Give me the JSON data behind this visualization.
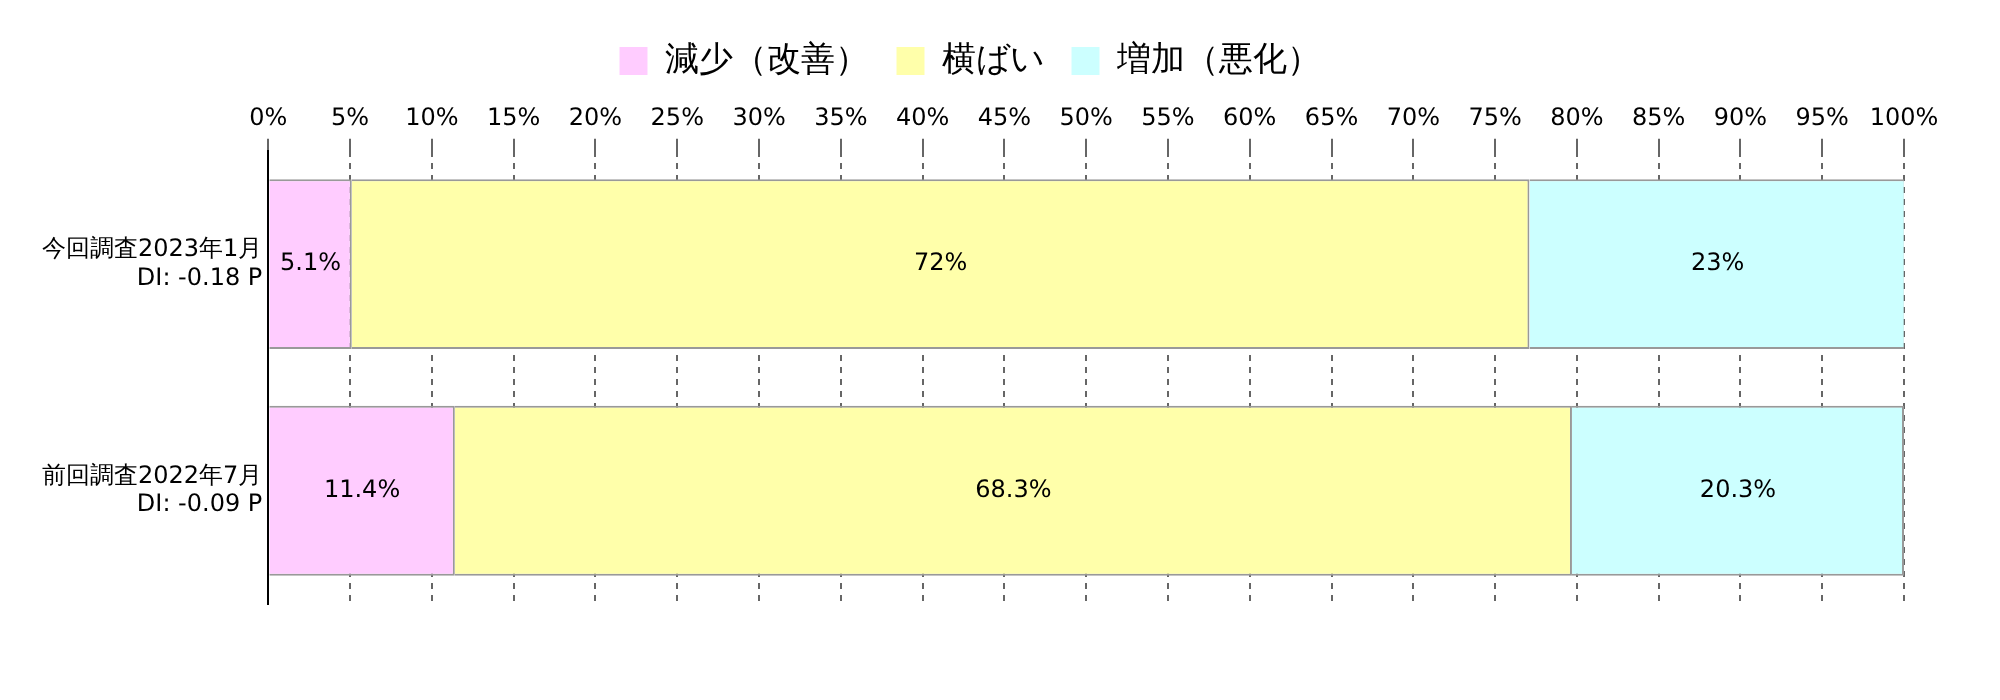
{
  "chart_data": {
    "type": "bar",
    "orientation": "horizontal",
    "stacked": true,
    "categories": [
      "今回調査2023年1月\nDI: -0.18 P",
      "前回調査2022年7月\nDI: -0.09 P"
    ],
    "series": [
      {
        "name": "減少（改善）",
        "color": "#ffccff",
        "values": [
          5.1,
          11.4
        ],
        "value_labels": [
          "5.1%",
          "11.4%"
        ]
      },
      {
        "name": "横ばい",
        "color": "#ffffaa",
        "values": [
          72,
          68.3
        ],
        "value_labels": [
          "72%",
          "68.3%"
        ]
      },
      {
        "name": "増加（悪化）",
        "color": "#ccffff",
        "values": [
          23,
          20.3
        ],
        "value_labels": [
          "23%",
          "20.3%"
        ]
      }
    ],
    "xlim": [
      0,
      100
    ],
    "xticks": [
      {
        "value": 0,
        "label": "0%"
      },
      {
        "value": 5,
        "label": "5%"
      },
      {
        "value": 10,
        "label": "10%"
      },
      {
        "value": 15,
        "label": "15%"
      },
      {
        "value": 20,
        "label": "20%"
      },
      {
        "value": 25,
        "label": "25%"
      },
      {
        "value": 30,
        "label": "30%"
      },
      {
        "value": 35,
        "label": "35%"
      },
      {
        "value": 40,
        "label": "40%"
      },
      {
        "value": 45,
        "label": "45%"
      },
      {
        "value": 50,
        "label": "50%"
      },
      {
        "value": 55,
        "label": "55%"
      },
      {
        "value": 60,
        "label": "60%"
      },
      {
        "value": 65,
        "label": "65%"
      },
      {
        "value": 70,
        "label": "70%"
      },
      {
        "value": 75,
        "label": "75%"
      },
      {
        "value": 80,
        "label": "80%"
      },
      {
        "value": 85,
        "label": "85%"
      },
      {
        "value": 90,
        "label": "90%"
      },
      {
        "value": 95,
        "label": "95%"
      },
      {
        "value": 100,
        "label": "100%"
      }
    ],
    "grid": "x",
    "legend": "top"
  }
}
